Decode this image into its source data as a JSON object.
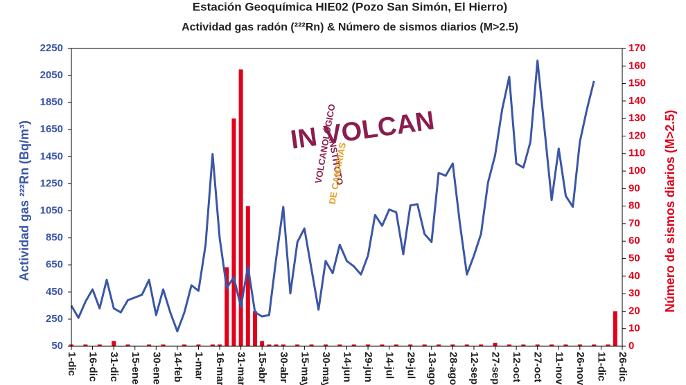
{
  "chart_data": {
    "type": "line",
    "title": "Estación Geoquímica HIE02 (Pozo San Simón, El Hierro)",
    "subtitle": "Actividad gas radón (²²²Rn) & Número de sismos diarios (M>2.5)",
    "y_label": "Actividad gas ²²²Rn (Bq/m³)",
    "y2_label": "Número de sismos diarios (M>2.5)",
    "logo": {
      "mark": "IN VOLCAN",
      "line1": "INSTITUTO",
      "line2": "VOLCANOLÓGICO",
      "line3": "DE CANARIAS"
    },
    "categories": [
      "1-dic",
      null,
      null,
      "16-dic",
      null,
      null,
      "31-dic",
      null,
      null,
      "15-ene",
      null,
      null,
      "30-ene",
      null,
      null,
      "14-feb",
      null,
      null,
      "1-mar",
      null,
      null,
      "16-mar",
      null,
      null,
      "31-mar",
      null,
      null,
      "15-abr",
      null,
      null,
      "30-abr",
      null,
      null,
      "15-may",
      null,
      null,
      "30-may",
      null,
      null,
      "14-jun",
      null,
      null,
      "29-jun",
      null,
      null,
      "14-jul",
      null,
      null,
      "29-jul",
      null,
      null,
      "13-ago",
      null,
      null,
      "28-ago",
      null,
      null,
      "12-sep",
      null,
      null,
      "27-sep",
      null,
      null,
      "12-oct",
      null,
      null,
      "27-oct",
      null,
      null,
      "11-nov",
      null,
      null,
      "26-nov",
      null,
      null,
      "11-dic",
      null,
      null,
      "26-dic"
    ],
    "series": [
      {
        "type": "line",
        "color": "#3a56a6",
        "axis": "y",
        "values": [
          350,
          260,
          380,
          470,
          330,
          540,
          330,
          300,
          390,
          410,
          430,
          540,
          280,
          470,
          300,
          160,
          300,
          500,
          460,
          800,
          1470,
          850,
          480,
          560,
          340,
          640,
          300,
          270,
          280,
          700,
          1080,
          440,
          820,
          920,
          620,
          320,
          680,
          590,
          800,
          680,
          640,
          580,
          720,
          1020,
          940,
          1060,
          1040,
          730,
          1090,
          1100,
          880,
          820,
          1330,
          1310,
          1400,
          960,
          580,
          720,
          880,
          1260,
          1460,
          1800,
          2040,
          1400,
          1370,
          1560,
          2160,
          1650,
          1130,
          1510,
          1160,
          1080,
          1560,
          1800,
          2010,
          null,
          null,
          null,
          null
        ]
      },
      {
        "type": "bar",
        "color": "#e2001a",
        "axis": "y2",
        "values": [
          1,
          0,
          1,
          0,
          1,
          0,
          3,
          0,
          1,
          0,
          0,
          1,
          0,
          1,
          0,
          0,
          1,
          0,
          1,
          0,
          1,
          1,
          45,
          130,
          158,
          80,
          20,
          3,
          1,
          1,
          1,
          0,
          1,
          0,
          1,
          0,
          1,
          0,
          1,
          0,
          1,
          0,
          1,
          0,
          1,
          0,
          1,
          0,
          1,
          0,
          1,
          0,
          1,
          0,
          1,
          0,
          1,
          0,
          1,
          0,
          2,
          0,
          1,
          0,
          1,
          0,
          1,
          0,
          1,
          0,
          1,
          0,
          1,
          0,
          1,
          0,
          1,
          20,
          0
        ]
      }
    ],
    "ylim": [
      50,
      2250
    ],
    "yticks": [
      50,
      250,
      450,
      650,
      850,
      1050,
      1250,
      1450,
      1650,
      1850,
      2050,
      2250
    ],
    "y2lim": [
      0,
      170
    ],
    "y2ticks": [
      0,
      10,
      20,
      30,
      40,
      50,
      60,
      70,
      80,
      90,
      100,
      110,
      120,
      130,
      140,
      150,
      160,
      170
    ],
    "grid": false
  }
}
